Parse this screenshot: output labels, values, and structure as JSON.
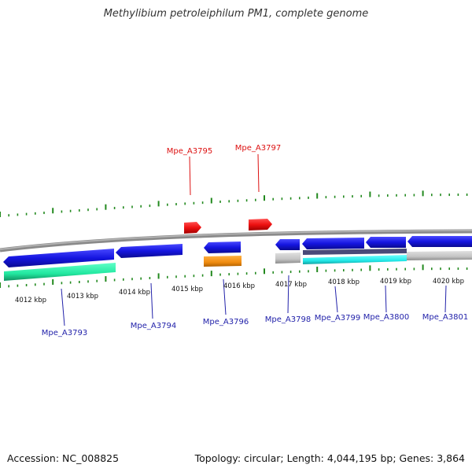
{
  "title": "Methylibium petroleiphilum PM1, complete genome",
  "accession": "Accession: NC_008825",
  "stats": "Topology: circular; Length: 4,044,195 bp; Genes: 3,864",
  "colors": {
    "gene_blue": "#1515e0",
    "gene_red": "#ee1111",
    "gene_orange": "#f08c10",
    "gene_grey": "#c4c4c4",
    "rna_green": "#22e8a0",
    "rna_cyan": "#22e8e8",
    "tick_green": "#22891e",
    "backbone": "#8a8a8a",
    "label_blue": "#2222aa",
    "label_red": "#dd1111"
  },
  "kbp_ticks": [
    "4012 kbp",
    "4013 kbp",
    "4014 kbp",
    "4015 kbp",
    "4016 kbp",
    "4017 kbp",
    "4018 kbp",
    "4019 kbp",
    "4020 kbp"
  ],
  "genes": [
    {
      "name": "Mpe_A3793",
      "strand": "-",
      "color": "blue"
    },
    {
      "name": "Mpe_A3794",
      "strand": "-",
      "color": "blue"
    },
    {
      "name": "Mpe_A3795",
      "strand": "+",
      "color": "red"
    },
    {
      "name": "Mpe_A3796",
      "strand": "-",
      "color": "blue"
    },
    {
      "name": "Mpe_A3797",
      "strand": "+",
      "color": "red"
    },
    {
      "name": "Mpe_A3798",
      "strand": "-",
      "color": "blue"
    },
    {
      "name": "Mpe_A3799",
      "strand": "-",
      "color": "blue"
    },
    {
      "name": "Mpe_A3800",
      "strand": "-",
      "color": "blue"
    },
    {
      "name": "Mpe_A3801",
      "strand": "-",
      "color": "blue"
    }
  ]
}
